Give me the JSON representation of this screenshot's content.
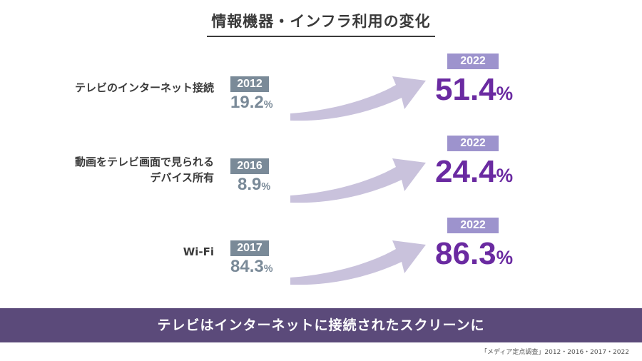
{
  "title": "情報機器・インフラ利用の変化",
  "chart_data": {
    "type": "table",
    "rows": [
      {
        "label_lines": [
          "テレビのインターネット接続"
        ],
        "base_year": "2012",
        "base_value": 19.2,
        "target_year": "2022",
        "target_value": 51.4,
        "unit": "%"
      },
      {
        "label_lines": [
          "動画をテレビ画面で見られる",
          "デバイス所有"
        ],
        "base_year": "2016",
        "base_value": 8.9,
        "target_year": "2022",
        "target_value": 24.4,
        "unit": "%"
      },
      {
        "label_lines": [
          "Wi-Fi"
        ],
        "base_year": "2017",
        "base_value": 84.3,
        "target_year": "2022",
        "target_value": 86.3,
        "unit": "%"
      }
    ],
    "colors": {
      "base": "#7a8a98",
      "target_year_bg": "#9d93cd",
      "target_value": "#6a2aa1",
      "arrow": "#c9c2dc"
    }
  },
  "banner": "テレビはインターネットに接続されたスクリーンに",
  "source": "「メディア定点調査」2012・2016・2017・2022"
}
